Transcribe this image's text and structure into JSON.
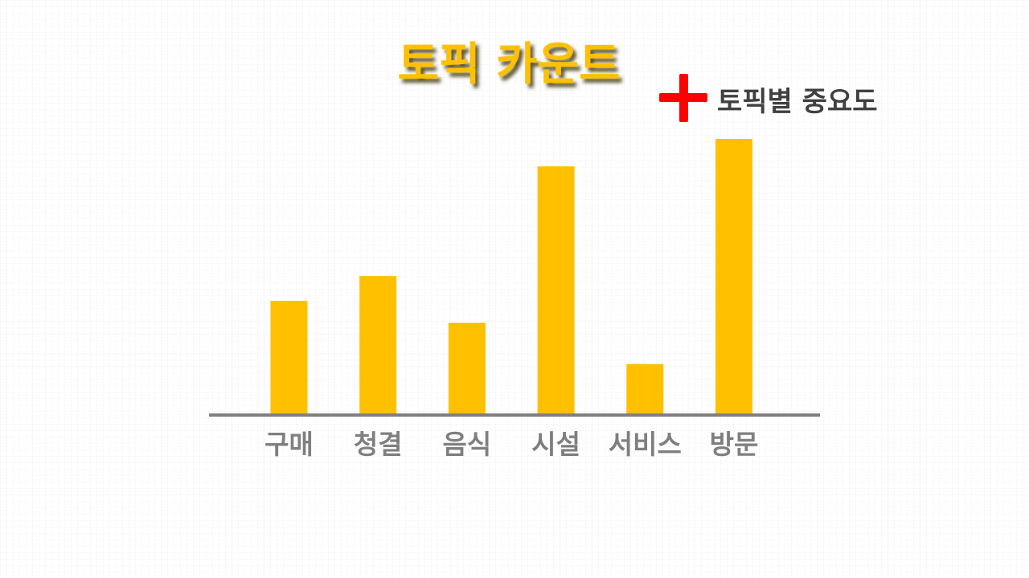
{
  "colors": {
    "bar": "#FFC000",
    "title": "#FFC000",
    "title_shadow": "#3a2e00",
    "plus": "#FF0000",
    "annotation": "#404040",
    "category_label": "#7F7F7F",
    "axis": "#808080"
  },
  "icons": {
    "plus": "plus-icon"
  },
  "chart_data": {
    "type": "bar",
    "title": "토픽 카운트",
    "annotations": [
      "토픽별 중요도"
    ],
    "categories": [
      "구매",
      "청결",
      "음식",
      "시설",
      "서비스",
      "방문"
    ],
    "values": [
      41,
      50,
      33,
      90,
      18,
      100
    ],
    "xlabel": "",
    "ylabel": "",
    "ylim": [
      0,
      100
    ],
    "grid": false,
    "legend": "none"
  }
}
